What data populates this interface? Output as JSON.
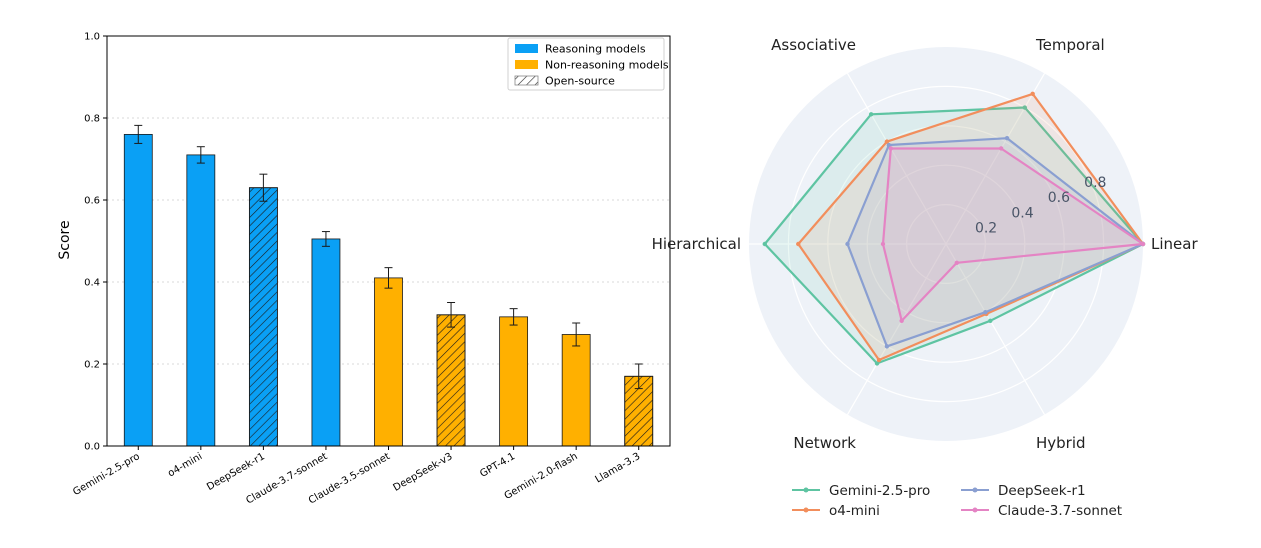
{
  "chart_data": [
    {
      "type": "bar",
      "ylabel": "Score",
      "ylim": [
        0,
        1.0
      ],
      "yticks": [
        "0.0",
        "0.2",
        "0.4",
        "0.6",
        "0.8",
        "1.0"
      ],
      "grid": "horizontal-dotted",
      "legend_placement": "top-right",
      "legend": [
        {
          "label": "Reasoning models",
          "color": "#0aa0f5",
          "pattern": "solid"
        },
        {
          "label": "Non-reasoning models",
          "color": "#ffb000",
          "pattern": "solid"
        },
        {
          "label": "Open-source",
          "color": "#ffffff",
          "pattern": "hatch"
        }
      ],
      "categories": [
        "Gemini-2.5-pro",
        "o4-mini",
        "DeepSeek-r1",
        "Claude-3.7-sonnet",
        "Claude-3.5-sonnet",
        "DeepSeek-v3",
        "GPT-4.1",
        "Gemini-2.0-flash",
        "Llama-3.3"
      ],
      "values": [
        0.76,
        0.71,
        0.63,
        0.505,
        0.41,
        0.32,
        0.315,
        0.272,
        0.17
      ],
      "errors": [
        0.022,
        0.02,
        0.033,
        0.018,
        0.025,
        0.03,
        0.02,
        0.028,
        0.03
      ],
      "groups": [
        "reasoning",
        "reasoning",
        "reasoning",
        "reasoning",
        "non-reasoning",
        "non-reasoning",
        "non-reasoning",
        "non-reasoning",
        "non-reasoning"
      ],
      "open_source": [
        false,
        false,
        true,
        false,
        false,
        true,
        false,
        false,
        true
      ]
    },
    {
      "type": "radar",
      "axes": [
        "Linear",
        "Temporal",
        "Associative",
        "Hierarchical",
        "Network",
        "Hybrid"
      ],
      "rlim": [
        0,
        1.0
      ],
      "rticks": [
        "0.2",
        "0.4",
        "0.6",
        "0.8"
      ],
      "legend_placement": "bottom",
      "series": [
        {
          "name": "Gemini-2.5-pro",
          "color": "#5ec4a2",
          "values": [
            1.0,
            0.8,
            0.76,
            0.92,
            0.7,
            0.45
          ]
        },
        {
          "name": "o4-mini",
          "color": "#f28e5c",
          "values": [
            1.0,
            0.88,
            0.6,
            0.75,
            0.68,
            0.41
          ]
        },
        {
          "name": "DeepSeek-r1",
          "color": "#8a9fd1",
          "values": [
            1.0,
            0.62,
            0.58,
            0.5,
            0.6,
            0.4
          ]
        },
        {
          "name": "Claude-3.7-sonnet",
          "color": "#e484c4",
          "values": [
            1.0,
            0.56,
            0.56,
            0.32,
            0.45,
            0.11
          ]
        }
      ]
    }
  ]
}
